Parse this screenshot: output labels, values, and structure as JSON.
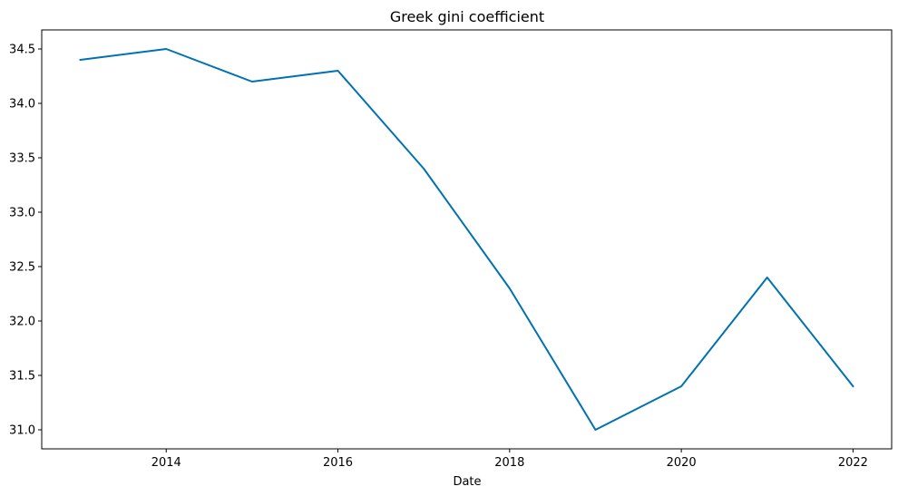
{
  "chart_data": {
    "type": "line",
    "title": "Greek gini coefficient",
    "xlabel": "Date",
    "ylabel": "",
    "x": [
      2013,
      2014,
      2015,
      2016,
      2017,
      2018,
      2019,
      2020,
      2021,
      2022
    ],
    "series": [
      {
        "values": [
          34.4,
          34.5,
          34.2,
          34.3,
          33.4,
          32.3,
          31.0,
          31.4,
          32.4,
          31.4
        ],
        "color": "#0072b2"
      }
    ],
    "xlim": [
      2012.55,
      2022.45
    ],
    "ylim": [
      30.825,
      34.675
    ],
    "x_ticks": [
      "2014",
      "2016",
      "2018",
      "2020",
      "2022"
    ],
    "y_ticks": [
      "31.0",
      "31.5",
      "32.0",
      "32.5",
      "33.0",
      "33.5",
      "34.0",
      "34.5"
    ],
    "grid": false,
    "legend": "none"
  }
}
